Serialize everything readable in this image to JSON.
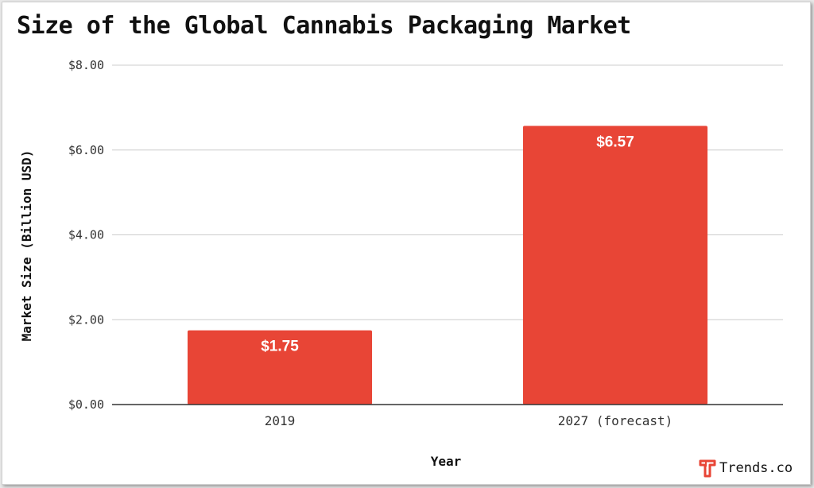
{
  "chart_data": {
    "type": "bar",
    "title": "Size of the Global Cannabis Packaging Market",
    "xlabel": "Year",
    "ylabel": "Market Size (Billion USD)",
    "categories": [
      "2019",
      "2027 (forecast)"
    ],
    "values": [
      1.75,
      6.57
    ],
    "data_labels": [
      "$1.75",
      "$6.57"
    ],
    "ylim": [
      0,
      8
    ],
    "y_ticks": [
      0,
      2,
      4,
      6,
      8
    ],
    "y_tick_labels": [
      "$0.00",
      "$2.00",
      "$4.00",
      "$6.00",
      "$8.00"
    ],
    "grid": true,
    "legend": "none",
    "bar_color": "#e84536"
  },
  "brand": {
    "name": "Trends.co",
    "icon": "trends-logo-icon",
    "color": "#e84536"
  }
}
